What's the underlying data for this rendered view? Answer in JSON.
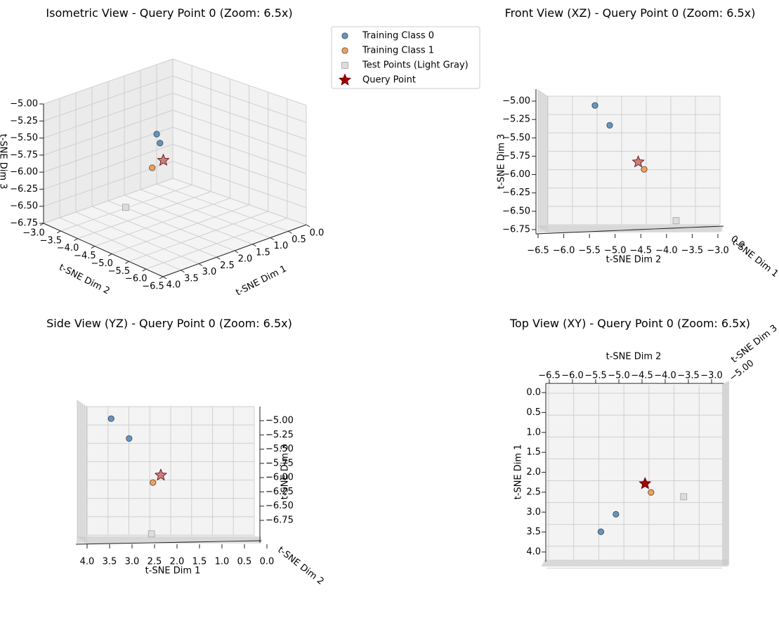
{
  "figure": {
    "panel_titles": {
      "iso": "Isometric View - Query Point 0 (Zoom: 6.5x)",
      "front": "Front View (XZ) - Query Point 0 (Zoom: 6.5x)",
      "side": "Side View (YZ) - Query Point 0 (Zoom: 6.5x)",
      "top": "Top View (XY) - Query Point 0 (Zoom: 6.5x)"
    },
    "axis_labels": {
      "x": "t-SNE Dim 1",
      "y": "t-SNE Dim 2",
      "z": "t-SNE Dim 3"
    }
  },
  "chart_data": {
    "type": "scatter",
    "projection": "3d",
    "xlim": [
      0.0,
      4.0
    ],
    "ylim": [
      -6.5,
      -3.0
    ],
    "zlim": [
      -6.75,
      -5.0
    ],
    "ticks": {
      "x": [
        "0.0",
        "0.5",
        "1.0",
        "1.5",
        "2.0",
        "2.5",
        "3.0",
        "3.5",
        "4.0"
      ],
      "y": [
        "−6.5",
        "−6.0",
        "−5.5",
        "−5.0",
        "−4.5",
        "−4.0",
        "−3.5",
        "−3.0"
      ],
      "z": [
        "−5.00",
        "−5.25",
        "−5.50",
        "−5.75",
        "−6.00",
        "−6.25",
        "−6.50",
        "−6.75"
      ]
    },
    "series": [
      {
        "name": "Training Class 0",
        "color": "#5b8fbe",
        "marker": "circle",
        "points": [
          {
            "x": 3.2,
            "y": -5.5,
            "z": -5.03
          },
          {
            "x": 2.8,
            "y": -5.2,
            "z": -5.3
          }
        ]
      },
      {
        "name": "Training Class 1",
        "color": "#f19c51",
        "marker": "circle",
        "points": [
          {
            "x": 2.3,
            "y": -4.5,
            "z": -5.9
          }
        ]
      },
      {
        "name": "Test Points (Light Gray)",
        "color": "#dcdcdc",
        "marker": "square",
        "points": [
          {
            "x": 2.4,
            "y": -3.85,
            "z": -6.6
          }
        ]
      },
      {
        "name": "Query Point",
        "color": "#a30000",
        "marker": "star",
        "points": [
          {
            "x": 2.1,
            "y": -4.62,
            "z": -5.8
          }
        ]
      }
    ],
    "legend_position": "upper-left of top-right panel",
    "grid": true
  }
}
